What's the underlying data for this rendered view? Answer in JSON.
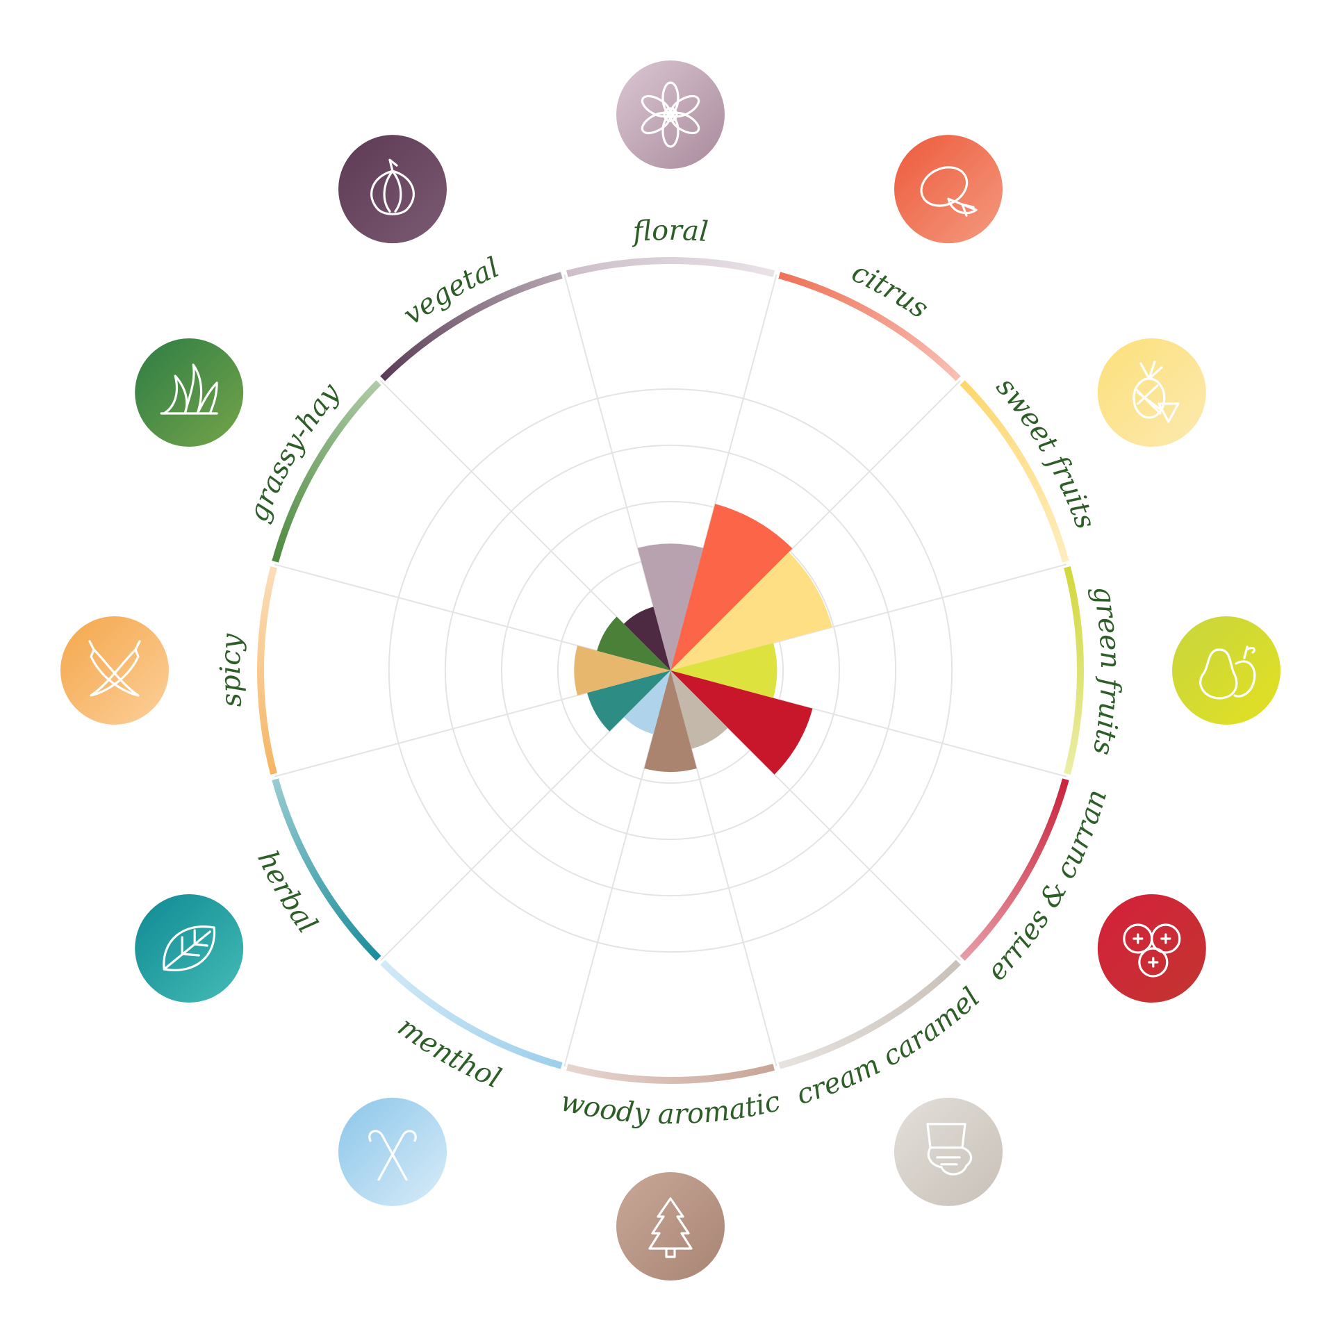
{
  "chart_data": {
    "type": "polar-area",
    "categories": [
      {
        "label": "floral",
        "value": 2.5,
        "color": "#b8a2b0",
        "ring": "#cdbfc9",
        "icon": "flower-icon"
      },
      {
        "label": "citrus",
        "value": 3.4,
        "color": "#fd6548",
        "ring": "#ee7258",
        "icon": "lemon-icon"
      },
      {
        "label": "sweet fruits",
        "value": 3.3,
        "color": "#fedf84",
        "ring": "#fdd76e",
        "icon": "pineapple-icon"
      },
      {
        "label": "green fruits",
        "value": 2.1,
        "color": "#dde23e",
        "ring": "#d2d83c",
        "icon": "pear-apple-icon"
      },
      {
        "label": "berries & currant",
        "value": 2.9,
        "color": "#c8172a",
        "ring": "#c9233a",
        "icon": "berries-icon"
      },
      {
        "label": "cream caramel",
        "value": 1.6,
        "color": "#c4b8ab",
        "ring": "#c9c0b8",
        "icon": "cream-caramel-icon"
      },
      {
        "label": "woody aromatic",
        "value": 2.0,
        "color": "#ab8470",
        "ring": "#c8a497",
        "icon": "tree-icon"
      },
      {
        "label": "menthol",
        "value": 1.3,
        "color": "#b0d3ec",
        "ring": "#9ccfec",
        "icon": "candy-cane-icon"
      },
      {
        "label": "herbal",
        "value": 1.7,
        "color": "#2d8c84",
        "ring": "#1b8d9a",
        "icon": "leaf-icon"
      },
      {
        "label": "spicy",
        "value": 1.9,
        "color": "#e7b76e",
        "ring": "#f6b563",
        "icon": "chili-icon"
      },
      {
        "label": "grassy-hay",
        "value": 1.5,
        "color": "#4a8037",
        "ring": "#4d8a3e",
        "icon": "grass-icon"
      },
      {
        "label": "vegetal",
        "value": 1.3,
        "color": "#4d2a42",
        "ring": "#5a3c54",
        "icon": "onion-icon"
      }
    ],
    "rmax": 5,
    "grid": true
  },
  "icon_colors": {
    "floral": [
      "#dcc7d3",
      "#a88a9c"
    ],
    "citrus": [
      "#ee5a3c",
      "#f39a7f"
    ],
    "sweet fruits": [
      "#fde07a",
      "#fbe9b0"
    ],
    "green fruits": [
      "#c7d63e",
      "#e3e021"
    ],
    "berries & currant": [
      "#d5203b",
      "#c23530"
    ],
    "cream caramel": [
      "#e4dfda",
      "#c8c0b8"
    ],
    "woody aromatic": [
      "#c9a898",
      "#a88473"
    ],
    "menthol": [
      "#8cc6ea",
      "#d8ecf8"
    ],
    "herbal": [
      "#0f8993",
      "#45bcb6"
    ],
    "spicy": [
      "#f4a64a",
      "#fcd09a"
    ],
    "grassy-hay": [
      "#2d7d45",
      "#75a449"
    ],
    "vegetal": [
      "#5e3a54",
      "#7a5a72"
    ]
  }
}
